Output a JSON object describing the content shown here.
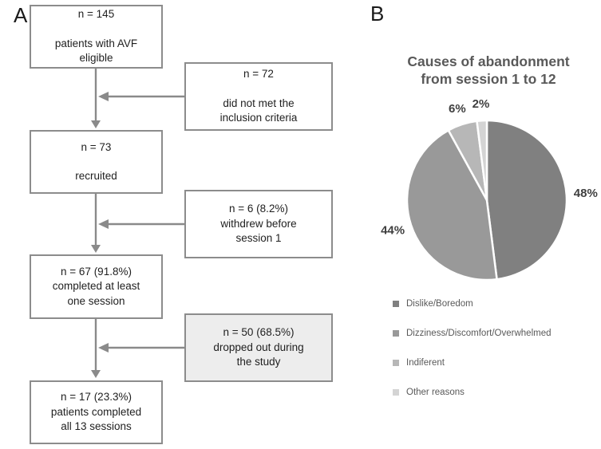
{
  "panels": {
    "a_label": "A",
    "b_label": "B"
  },
  "flowchart": {
    "boxes": [
      {
        "n": "n = 145",
        "desc": [
          "patients with AVF",
          "eligible"
        ],
        "spaced": true,
        "highlight": false
      },
      {
        "n": "n = 72",
        "desc": [
          "did not met the",
          "inclusion criteria"
        ],
        "spaced": true,
        "highlight": false
      },
      {
        "n": "n = 73",
        "desc": [
          "recruited"
        ],
        "spaced": true,
        "highlight": false
      },
      {
        "n": "n = 6 (8.2%)",
        "desc": [
          "withdrew before",
          "session 1"
        ],
        "spaced": false,
        "highlight": false
      },
      {
        "n": "n = 67 (91.8%)",
        "desc": [
          "completed at least",
          "one session"
        ],
        "spaced": false,
        "highlight": false
      },
      {
        "n": "n = 50 (68.5%)",
        "desc": [
          "dropped out during",
          "the study"
        ],
        "spaced": false,
        "highlight": true
      },
      {
        "n": "n = 17 (23.3%)",
        "desc": [
          "patients completed",
          "all 13 sessions"
        ],
        "spaced": false,
        "highlight": false
      }
    ]
  },
  "chart_data": {
    "type": "pie",
    "title": "Causes of abandonment from session 1 to 12",
    "title_lines": [
      "Causes of abandonment",
      "from session 1 to 12"
    ],
    "labels": [
      "Dislike/Boredom",
      "Dizziness/Discomfort/Overwhelmed",
      "Indiferent",
      "Other reasons"
    ],
    "values": [
      48,
      44,
      6,
      2
    ],
    "value_labels": [
      "48%",
      "44%",
      "6%",
      "2%"
    ],
    "colors": [
      "#808080",
      "#999999",
      "#b7b7b7",
      "#d4d4d4"
    ],
    "start_angle_deg": 0,
    "direction": "clockwise",
    "legend_position": "bottom-left"
  }
}
